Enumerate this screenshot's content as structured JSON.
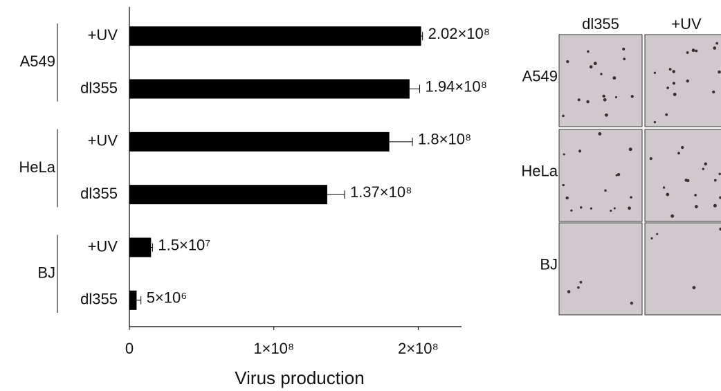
{
  "chart_data": {
    "type": "bar",
    "orientation": "horizontal",
    "x_label": "Virus production",
    "groups": [
      "A549",
      "HeLa",
      "BJ"
    ],
    "categories": [
      "+UV",
      "dl355",
      "+UV",
      "dl355",
      "+UV",
      "dl355"
    ],
    "values": [
      202000000,
      194000000,
      180000000,
      137000000,
      15000000,
      5000000
    ],
    "errors": [
      1000000,
      7000000,
      16000000,
      12000000,
      1000000,
      3000000
    ],
    "value_labels": [
      "2.02×10⁸",
      "1.94×10⁸",
      "1.8×10⁸",
      "1.37×10⁸",
      "1.5×10⁷",
      "5×10⁶"
    ],
    "color": "#000000",
    "xlim": [
      0,
      230000000
    ],
    "xticks": [
      0,
      {
        "value": 100000000,
        "label": "1×10⁸"
      },
      {
        "value": 200000000,
        "label": "2×10⁸"
      }
    ]
  },
  "image_panel": {
    "columns": [
      "dl355",
      "+UV"
    ],
    "rows": [
      "A549",
      "HeLa",
      "BJ"
    ]
  }
}
